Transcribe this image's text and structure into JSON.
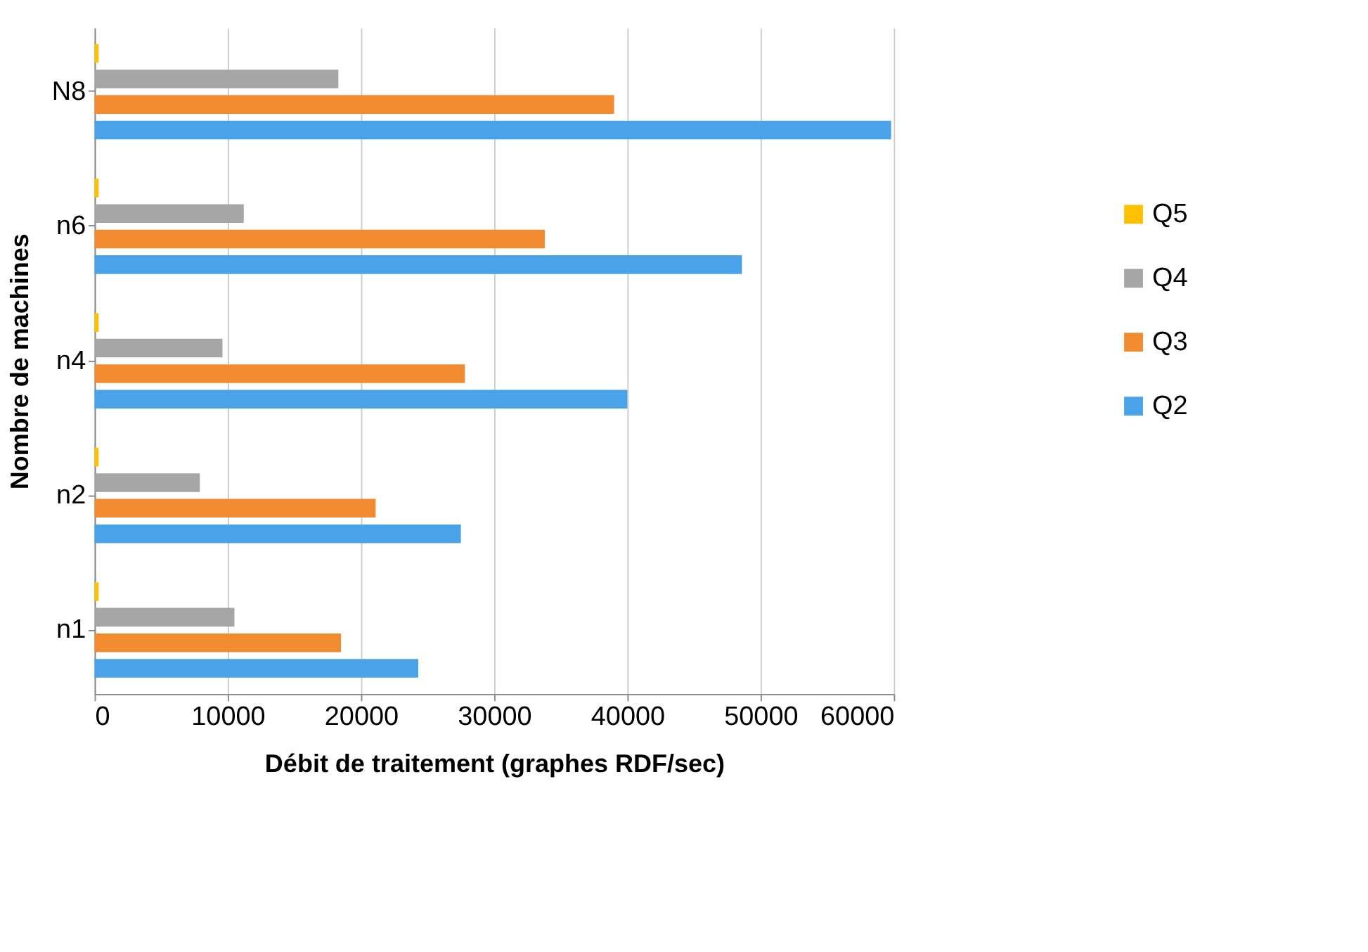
{
  "chart_data": {
    "type": "bar",
    "orientation": "horizontal",
    "xlabel": "Débit de traitement (graphes RDF/sec)",
    "ylabel": "Nombre de machines",
    "categories": [
      "N8",
      "n6",
      "n4",
      "n2",
      "n1"
    ],
    "series": [
      {
        "name": "Q5",
        "color": "#ffc000",
        "values": [
          300,
          300,
          300,
          300,
          300
        ]
      },
      {
        "name": "Q4",
        "color": "#a6a6a6",
        "values": [
          18300,
          11200,
          9600,
          7900,
          10500
        ]
      },
      {
        "name": "Q3",
        "color": "#f28a30",
        "values": [
          39000,
          33800,
          27800,
          21100,
          18500
        ]
      },
      {
        "name": "Q2",
        "color": "#4aa3e8",
        "values": [
          59800,
          48600,
          40000,
          27500,
          24300
        ]
      }
    ],
    "xlim": [
      0,
      60000
    ],
    "xticks": [
      0,
      10000,
      20000,
      30000,
      40000,
      50000,
      60000
    ],
    "grid": "x",
    "legend": "right"
  }
}
